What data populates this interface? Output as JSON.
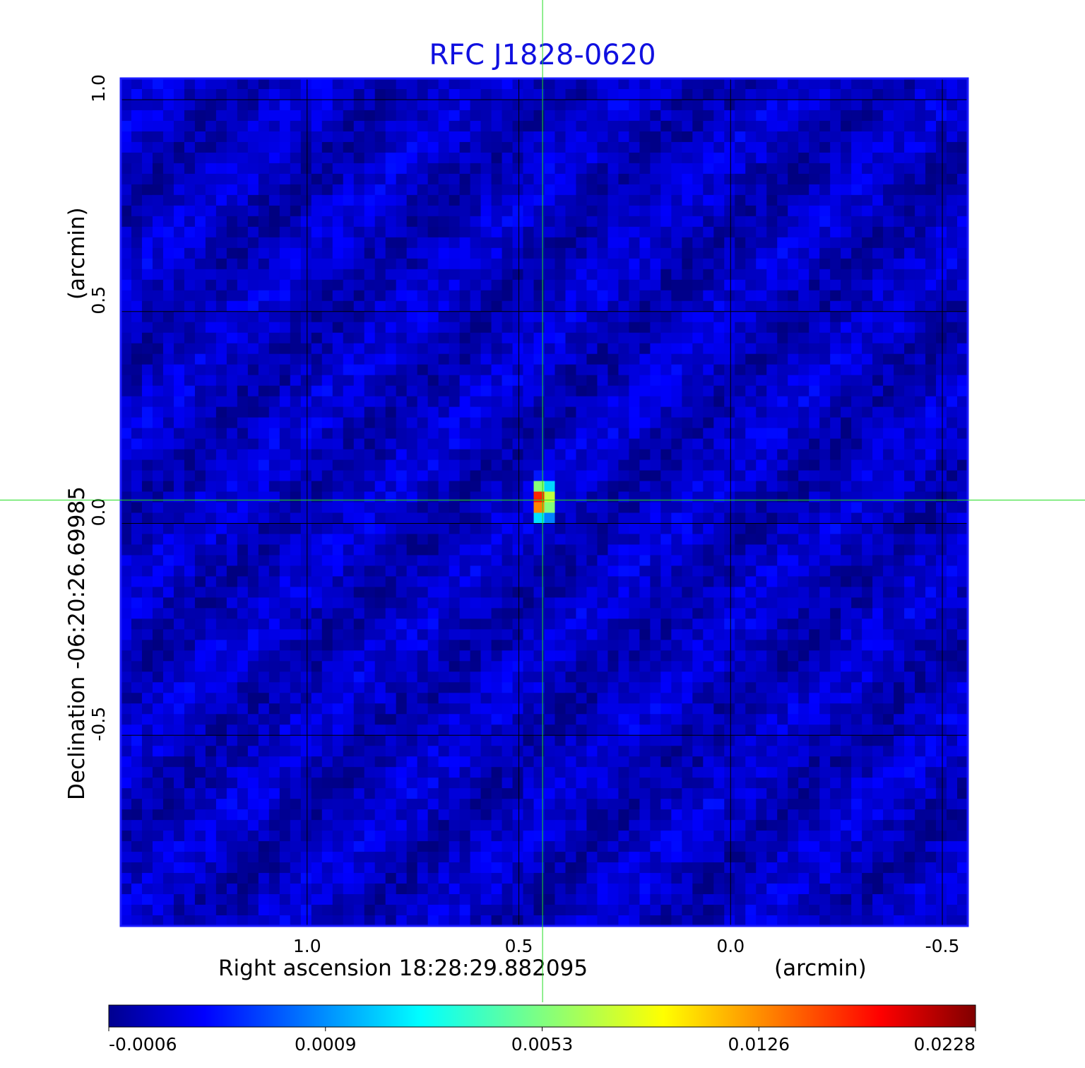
{
  "chart_data": {
    "type": "heatmap",
    "title": "RFC J1828-0620",
    "xlabel": "Right ascension  18:28:29.882095",
    "xunit": "(arcmin)",
    "ylabel": "Declination  -06:20:26.69985",
    "yunit": "(arcmin)",
    "xlim": [
      1.44,
      -0.56
    ],
    "ylim": [
      -0.95,
      1.05
    ],
    "x_ticks": [
      {
        "value": 1.0,
        "label": "1.0"
      },
      {
        "value": 0.5,
        "label": "0.5"
      },
      {
        "value": 0.0,
        "label": "0.0"
      },
      {
        "value": -0.5,
        "label": "-0.5"
      }
    ],
    "y_ticks": [
      {
        "value": 1.0,
        "label": "1.0"
      },
      {
        "value": 0.5,
        "label": "0.5"
      },
      {
        "value": 0.0,
        "label": "0.0"
      },
      {
        "value": -0.5,
        "label": "-0.5"
      }
    ],
    "grid": true,
    "crosshair": {
      "x": 0.444,
      "y": 0.055,
      "color": "#22dd22"
    },
    "colormap": "jet",
    "colorbar": {
      "orientation": "horizontal",
      "ticks": [
        "-0.0006",
        "0.0009",
        "0.0053",
        "0.0126",
        "0.0228"
      ]
    },
    "peak": {
      "x": 0.444,
      "y": 0.055,
      "value": 0.0228
    },
    "background_level": -0.0002
  }
}
